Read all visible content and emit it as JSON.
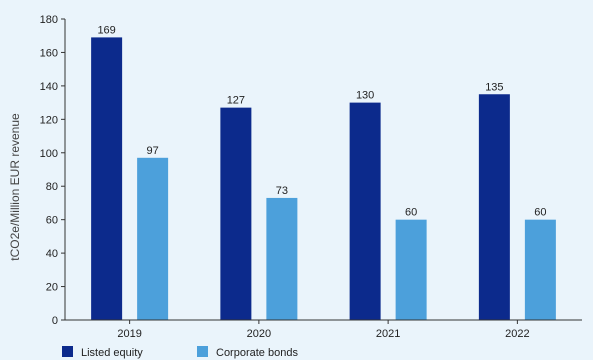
{
  "chart_data": {
    "type": "bar",
    "title": "",
    "xlabel": "",
    "ylabel": "tCO2e/Million EUR revenue",
    "categories": [
      "2019",
      "2020",
      "2021",
      "2022"
    ],
    "series": [
      {
        "name": "Listed equity",
        "values": [
          169,
          127,
          130,
          135
        ],
        "color": "#0c2a8c"
      },
      {
        "name": "Corporate bonds",
        "values": [
          97,
          73,
          60,
          60
        ],
        "color": "#4ca0db"
      }
    ],
    "ylim": [
      0,
      180
    ],
    "yticks": [
      0,
      20,
      40,
      60,
      80,
      100,
      120,
      140,
      160,
      180
    ],
    "grid": false,
    "legend_position": "bottom-left"
  }
}
